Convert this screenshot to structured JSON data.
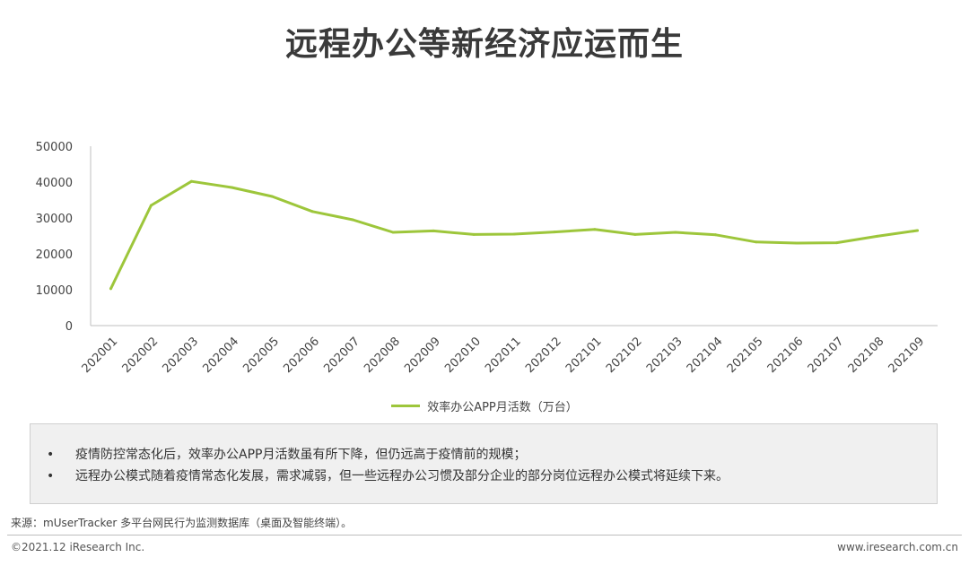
{
  "page": {
    "title": "远程办公等新经济应运而生"
  },
  "chart_data": {
    "type": "line",
    "categories": [
      "202001",
      "202002",
      "202003",
      "202004",
      "202005",
      "202006",
      "202007",
      "202008",
      "202009",
      "202010",
      "202011",
      "202012",
      "202101",
      "202102",
      "202103",
      "202104",
      "202105",
      "202106",
      "202107",
      "202108",
      "202109"
    ],
    "series": [
      {
        "name": "效率办公APP月活数（万台）",
        "values": [
          10300,
          33500,
          40200,
          38500,
          36000,
          31800,
          29500,
          26000,
          26400,
          25400,
          25500,
          26100,
          26800,
          25400,
          26000,
          25300,
          23300,
          23000,
          23100,
          24900,
          26500
        ]
      }
    ],
    "ylim": [
      0,
      50000
    ],
    "yticks": [
      "50000",
      "40000",
      "30000",
      "20000",
      "10000",
      "0"
    ],
    "grid": false,
    "legend_position": "bottom",
    "line_color": "#9dc63b"
  },
  "notes": [
    "疫情防控常态化后，效率办公APP月活数虽有所下降，但仍远高于疫情前的规模；",
    "远程办公模式随着疫情常态化发展，需求减弱，但一些远程办公习惯及部分企业的部分岗位远程办公模式将延续下来。"
  ],
  "bullet_char": "•",
  "footer": {
    "source": "来源：mUserTracker 多平台网民行为监测数据库（桌面及智能终端）。",
    "copyright": "©2021.12 iResearch Inc.",
    "site": "www.iresearch.com.cn"
  }
}
